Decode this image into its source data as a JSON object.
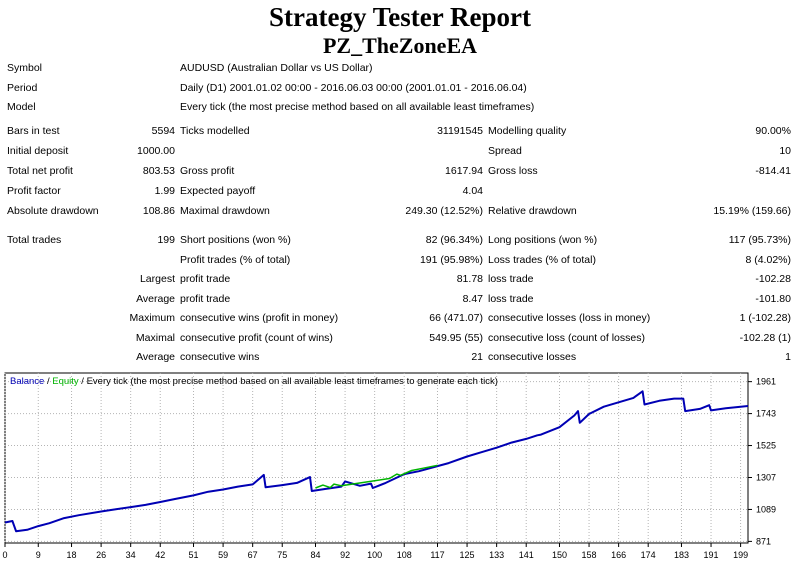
{
  "report": {
    "title": "Strategy Tester Report",
    "ea_name": "PZ_TheZoneEA"
  },
  "info": [
    {
      "label": "Symbol",
      "value": "AUDUSD (Australian Dollar vs US Dollar)"
    },
    {
      "label": "Period",
      "value": "Daily (D1) 2001.01.02 00:00 - 2016.06.03 00:00 (2001.01.01 - 2016.06.04)"
    },
    {
      "label": "Model",
      "value": "Every tick (the most precise method based on all available least timeframes)"
    }
  ],
  "stats": [
    [
      "Bars in test",
      "5594",
      "Ticks modelled",
      "31191545",
      "Modelling quality",
      "90.00%"
    ],
    [
      "Initial deposit",
      "1000.00",
      "",
      "",
      "Spread",
      "10"
    ],
    [
      "Total net profit",
      "803.53",
      "Gross profit",
      "1617.94",
      "Gross loss",
      "-814.41"
    ],
    [
      "Profit factor",
      "1.99",
      "Expected payoff",
      "4.04",
      "",
      ""
    ],
    [
      "Absolute drawdown",
      "108.86",
      "Maximal drawdown",
      "249.30 (12.52%)",
      "Relative drawdown",
      "15.19% (159.66)"
    ],
    [
      "Total trades",
      "199",
      "Short positions (won %)",
      "82 (96.34%)",
      "Long positions (won %)",
      "117 (95.73%)"
    ],
    [
      "",
      "",
      "Profit trades (% of total)",
      "191 (95.98%)",
      "Loss trades (% of total)",
      "8 (4.02%)"
    ],
    [
      "",
      "Largest",
      "profit trade",
      "81.78",
      "loss trade",
      "-102.28"
    ],
    [
      "",
      "Average",
      "profit trade",
      "8.47",
      "loss trade",
      "-101.80"
    ],
    [
      "",
      "Maximum",
      "consecutive wins (profit in money)",
      "66 (471.07)",
      "consecutive losses (loss in money)",
      "1 (-102.28)"
    ],
    [
      "",
      "Maximal",
      "consecutive profit (count of wins)",
      "549.95 (55)",
      "consecutive loss (count of losses)",
      "-102.28 (1)"
    ],
    [
      "",
      "Average",
      "consecutive wins",
      "21",
      "consecutive losses",
      "1"
    ]
  ],
  "chart_data": {
    "type": "line",
    "legend": {
      "balance": "Balance",
      "separator": " / ",
      "equity": "Equity",
      "suffix": " / Every tick (the most precise method based on all available least timeframes to generate each tick)"
    },
    "colors": {
      "balance": "#0000b4",
      "equity": "#00b400",
      "grid": "#b4b4b4",
      "background": "#ffffff"
    },
    "xlim": [
      0,
      201
    ],
    "ylim": [
      860,
      2020
    ],
    "x_ticks": [
      0,
      9,
      18,
      26,
      34,
      42,
      51,
      59,
      67,
      75,
      84,
      92,
      100,
      108,
      117,
      125,
      133,
      141,
      150,
      158,
      166,
      174,
      183,
      191,
      199
    ],
    "y_ticks": [
      871,
      1089,
      1307,
      1525,
      1743,
      1961
    ],
    "grid": true,
    "series": [
      {
        "name": "Balance",
        "x": [
          0,
          2,
          3,
          6,
          9,
          12,
          16,
          20,
          26,
          30,
          34,
          38,
          42,
          46,
          51,
          55,
          59,
          63,
          67,
          70,
          70.5,
          75,
          79,
          82.5,
          83,
          87,
          91,
          92,
          96,
          99,
          99.5,
          103,
          108,
          112,
          117,
          120,
          125,
          129,
          133,
          137,
          141,
          144,
          145,
          150,
          154,
          155,
          155.5,
          158,
          162,
          166,
          170,
          172.5,
          173,
          177,
          181,
          183.5,
          184,
          188,
          190.5,
          191,
          195,
          199,
          201
        ],
        "y": [
          1000,
          1010,
          940,
          950,
          975,
          995,
          1030,
          1050,
          1075,
          1090,
          1105,
          1120,
          1140,
          1160,
          1185,
          1210,
          1225,
          1245,
          1260,
          1325,
          1240,
          1255,
          1270,
          1310,
          1215,
          1230,
          1245,
          1280,
          1250,
          1265,
          1235,
          1270,
          1330,
          1350,
          1385,
          1405,
          1450,
          1480,
          1510,
          1545,
          1570,
          1595,
          1600,
          1650,
          1730,
          1760,
          1680,
          1740,
          1790,
          1820,
          1850,
          1895,
          1805,
          1830,
          1845,
          1845,
          1760,
          1775,
          1800,
          1765,
          1780,
          1790,
          1795
        ]
      },
      {
        "name": "Equity",
        "x": [
          84,
          86,
          88,
          89,
          91,
          104,
          106,
          107,
          110,
          113,
          117
        ],
        "y": [
          1235,
          1255,
          1238,
          1262,
          1250,
          1300,
          1330,
          1322,
          1355,
          1370,
          1390
        ]
      }
    ]
  }
}
